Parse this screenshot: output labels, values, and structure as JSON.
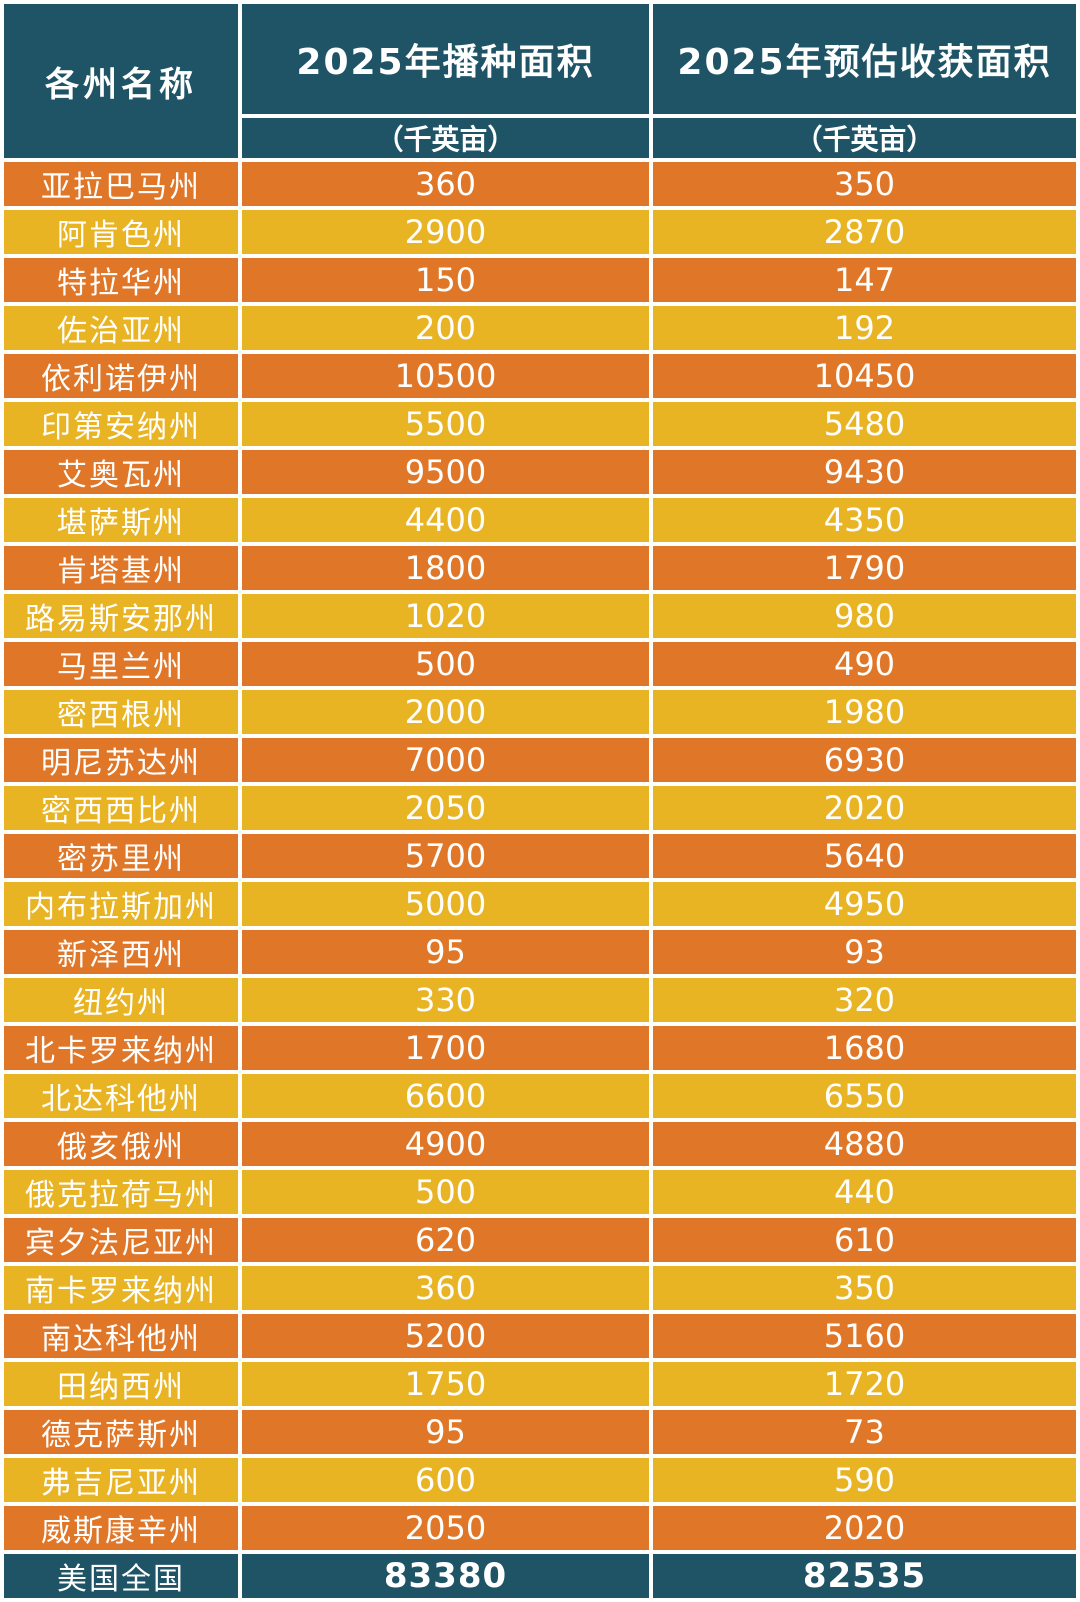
{
  "header": {
    "state_col": "各州名称",
    "planted_col": "2025年播种面积",
    "harvest_col": "2025年预估收获面积",
    "planted_unit": "（千英亩）",
    "harvest_unit": "（千英亩）"
  },
  "rows": [
    {
      "state": "亚拉巴马州",
      "planted": "360",
      "harvest": "350"
    },
    {
      "state": "阿肯色州",
      "planted": "2900",
      "harvest": "2870"
    },
    {
      "state": "特拉华州",
      "planted": "150",
      "harvest": "147"
    },
    {
      "state": "佐治亚州",
      "planted": "200",
      "harvest": "192"
    },
    {
      "state": "依利诺伊州",
      "planted": "10500",
      "harvest": "10450"
    },
    {
      "state": "印第安纳州",
      "planted": "5500",
      "harvest": "5480"
    },
    {
      "state": "艾奥瓦州",
      "planted": "9500",
      "harvest": "9430"
    },
    {
      "state": "堪萨斯州",
      "planted": "4400",
      "harvest": "4350"
    },
    {
      "state": "肯塔基州",
      "planted": "1800",
      "harvest": "1790"
    },
    {
      "state": "路易斯安那州",
      "planted": "1020",
      "harvest": "980"
    },
    {
      "state": "马里兰州",
      "planted": "500",
      "harvest": "490"
    },
    {
      "state": "密西根州",
      "planted": "2000",
      "harvest": "1980"
    },
    {
      "state": "明尼苏达州",
      "planted": "7000",
      "harvest": "6930"
    },
    {
      "state": "密西西比州",
      "planted": "2050",
      "harvest": "2020"
    },
    {
      "state": "密苏里州",
      "planted": "5700",
      "harvest": "5640"
    },
    {
      "state": "内布拉斯加州",
      "planted": "5000",
      "harvest": "4950"
    },
    {
      "state": "新泽西州",
      "planted": "95",
      "harvest": "93"
    },
    {
      "state": "纽约州",
      "planted": "330",
      "harvest": "320"
    },
    {
      "state": "北卡罗来纳州",
      "planted": "1700",
      "harvest": "1680"
    },
    {
      "state": "北达科他州",
      "planted": "6600",
      "harvest": "6550"
    },
    {
      "state": "俄亥俄州",
      "planted": "4900",
      "harvest": "4880"
    },
    {
      "state": "俄克拉荷马州",
      "planted": "500",
      "harvest": "440"
    },
    {
      "state": "宾夕法尼亚州",
      "planted": "620",
      "harvest": "610"
    },
    {
      "state": "南卡罗来纳州",
      "planted": "360",
      "harvest": "350"
    },
    {
      "state": "南达科他州",
      "planted": "5200",
      "harvest": "5160"
    },
    {
      "state": "田纳西州",
      "planted": "1750",
      "harvest": "1720"
    },
    {
      "state": "德克萨斯州",
      "planted": "95",
      "harvest": "73"
    },
    {
      "state": "弗吉尼亚州",
      "planted": "600",
      "harvest": "590"
    },
    {
      "state": "威斯康辛州",
      "planted": "2050",
      "harvest": "2020"
    }
  ],
  "total": {
    "state": "美国全国",
    "planted": "83380",
    "harvest": "82535"
  },
  "colors": {
    "header": "#1e5466",
    "row_orange": "#e07728",
    "row_yellow": "#e9b423"
  }
}
